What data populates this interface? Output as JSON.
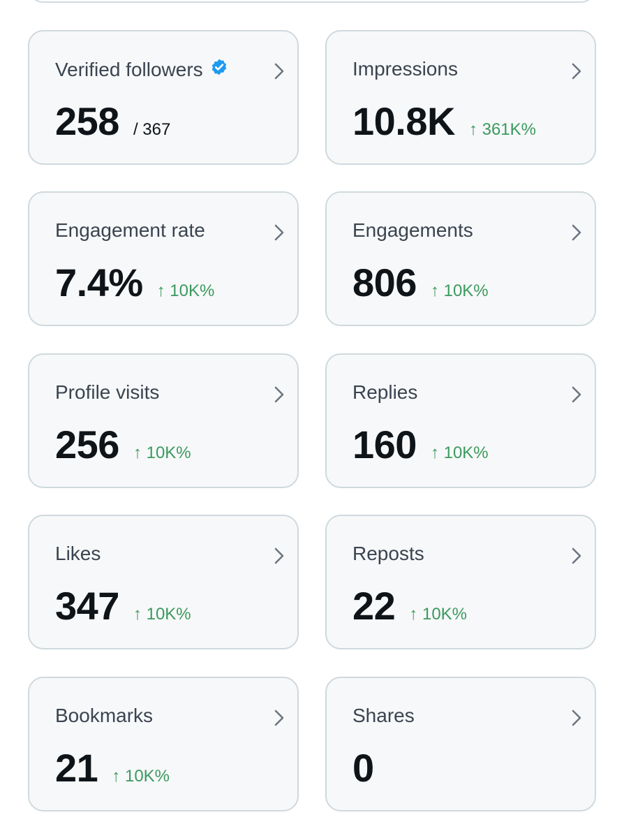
{
  "cards": [
    {
      "label": "Verified followers",
      "value": "258",
      "total": "/ 367"
    },
    {
      "label": "Impressions",
      "value": "10.8K",
      "change": "↑ 361K%"
    },
    {
      "label": "Engagement rate",
      "value": "7.4%",
      "change": "↑ 10K%"
    },
    {
      "label": "Engagements",
      "value": "806",
      "change": "↑ 10K%"
    },
    {
      "label": "Profile visits",
      "value": "256",
      "change": "↑ 10K%"
    },
    {
      "label": "Replies",
      "value": "160",
      "change": "↑ 10K%"
    },
    {
      "label": "Likes",
      "value": "347",
      "change": "↑ 10K%"
    },
    {
      "label": "Reposts",
      "value": "22",
      "change": "↑ 10K%"
    },
    {
      "label": "Bookmarks",
      "value": "21",
      "change": "↑ 10K%"
    },
    {
      "label": "Shares",
      "value": "0"
    }
  ]
}
